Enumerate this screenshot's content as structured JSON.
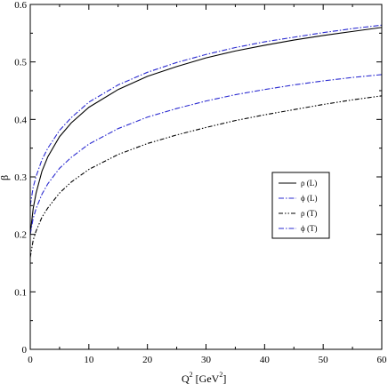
{
  "chart_data": {
    "type": "line",
    "xlabel": {
      "base": "Q",
      "sup": "2",
      "unit_open": " [GeV",
      "unit_sup": "2",
      "unit_close": "]"
    },
    "ylabel": "β",
    "xlim": [
      0,
      60
    ],
    "ylim": [
      0,
      0.6
    ],
    "xticks": [
      "0",
      "10",
      "20",
      "30",
      "40",
      "50",
      "60"
    ],
    "yticks": [
      "0",
      "0.1",
      "0.2",
      "0.3",
      "0.4",
      "0.5",
      "0.6"
    ],
    "grid": false,
    "legend_position": "right",
    "series": [
      {
        "name": "ρ (L)",
        "color": "#000000",
        "dash": "solid",
        "x": [
          0,
          0.5,
          1,
          2,
          3,
          5,
          7,
          10,
          15,
          20,
          25,
          30,
          35,
          40,
          45,
          50,
          55,
          60
        ],
        "y": [
          0.2,
          0.245,
          0.272,
          0.31,
          0.335,
          0.37,
          0.394,
          0.421,
          0.452,
          0.475,
          0.492,
          0.507,
          0.519,
          0.529,
          0.538,
          0.546,
          0.553,
          0.56
        ]
      },
      {
        "name": "ϕ (L)",
        "color": "#2a2ad0",
        "dash": "dashdot",
        "x": [
          0,
          0.5,
          1,
          2,
          3,
          5,
          7,
          10,
          15,
          20,
          25,
          30,
          35,
          40,
          45,
          50,
          55,
          60
        ],
        "y": [
          0.25,
          0.282,
          0.301,
          0.33,
          0.35,
          0.381,
          0.403,
          0.43,
          0.46,
          0.482,
          0.499,
          0.513,
          0.525,
          0.535,
          0.543,
          0.551,
          0.558,
          0.564
        ]
      },
      {
        "name": "ρ (T)",
        "color": "#000000",
        "dash": "dashdotdot",
        "x": [
          0,
          0.5,
          1,
          2,
          3,
          5,
          7,
          10,
          15,
          20,
          25,
          30,
          35,
          40,
          45,
          50,
          55,
          60
        ],
        "y": [
          0.16,
          0.19,
          0.206,
          0.23,
          0.246,
          0.272,
          0.291,
          0.313,
          0.339,
          0.358,
          0.373,
          0.386,
          0.398,
          0.408,
          0.417,
          0.426,
          0.434,
          0.441
        ]
      },
      {
        "name": "ϕ (T)",
        "color": "#2a2ad0",
        "dash": "dashdot",
        "x": [
          0,
          0.5,
          1,
          2,
          3,
          5,
          7,
          10,
          15,
          20,
          25,
          30,
          35,
          40,
          45,
          50,
          55,
          60
        ],
        "y": [
          0.2,
          0.228,
          0.245,
          0.27,
          0.288,
          0.315,
          0.334,
          0.357,
          0.384,
          0.404,
          0.419,
          0.432,
          0.443,
          0.452,
          0.46,
          0.467,
          0.473,
          0.478
        ]
      }
    ]
  }
}
